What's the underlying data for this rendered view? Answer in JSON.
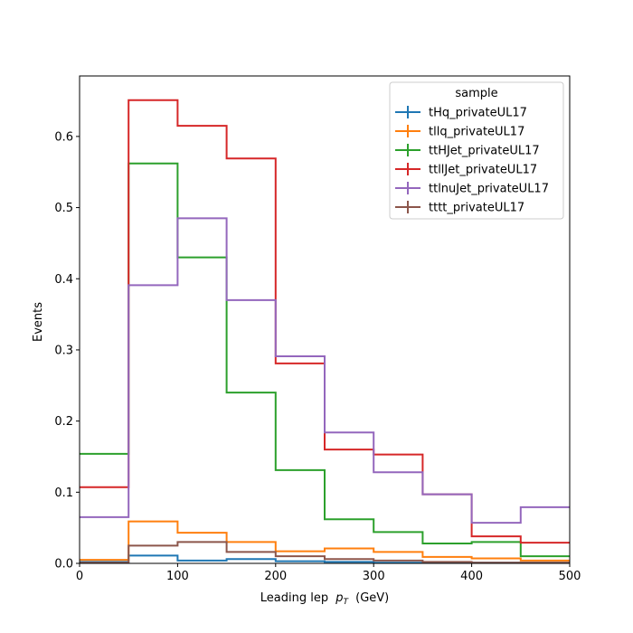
{
  "chart_data": {
    "type": "histogram-step",
    "xlabel": "Leading lep",
    "xlabel_sym": "p",
    "xlabel_sub": "T",
    "xlabel_unit": "(GeV)",
    "ylabel": "Events",
    "xlim": [
      0,
      500
    ],
    "ylim": [
      0,
      0.685
    ],
    "xticks": [
      0,
      100,
      200,
      300,
      400,
      500
    ],
    "yticks": [
      0.0,
      0.1,
      0.2,
      0.3,
      0.4,
      0.5,
      0.6
    ],
    "bin_edges": [
      0,
      50,
      100,
      150,
      200,
      250,
      300,
      350,
      400,
      450,
      500
    ],
    "grid": false,
    "legend": {
      "title": "sample",
      "placement": "top-right"
    },
    "series": [
      {
        "name": "tHq_privateUL17",
        "color": "#1f77b4",
        "values": [
          0.002,
          0.011,
          0.004,
          0.006,
          0.003,
          0.002,
          0.001,
          0.001,
          0.001,
          0.001
        ]
      },
      {
        "name": "tllq_privateUL17",
        "color": "#ff7f0e",
        "values": [
          0.005,
          0.059,
          0.043,
          0.03,
          0.017,
          0.021,
          0.016,
          0.009,
          0.007,
          0.004
        ]
      },
      {
        "name": "ttHJet_privateUL17",
        "color": "#2ca02c",
        "values": [
          0.154,
          0.562,
          0.43,
          0.24,
          0.131,
          0.062,
          0.044,
          0.028,
          0.03,
          0.01
        ]
      },
      {
        "name": "ttllJet_privateUL17",
        "color": "#d62728",
        "values": [
          0.107,
          0.651,
          0.615,
          0.569,
          0.281,
          0.16,
          0.153,
          0.097,
          0.038,
          0.029
        ]
      },
      {
        "name": "ttlnuJet_privateUL17",
        "color": "#9467bd",
        "values": [
          0.065,
          0.391,
          0.485,
          0.37,
          0.291,
          0.184,
          0.128,
          0.097,
          0.057,
          0.079
        ]
      },
      {
        "name": "tttt_privateUL17",
        "color": "#8c564b",
        "values": [
          0.001,
          0.025,
          0.03,
          0.016,
          0.01,
          0.006,
          0.004,
          0.002,
          0.001,
          0.001
        ]
      }
    ]
  }
}
